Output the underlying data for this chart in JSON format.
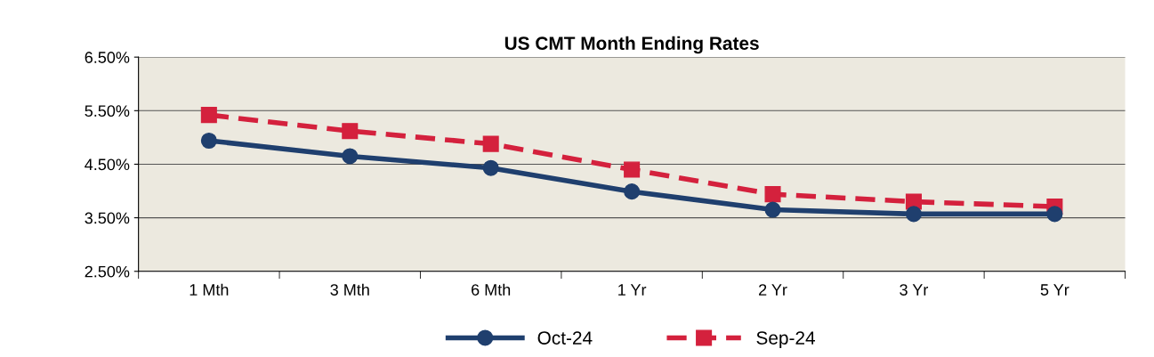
{
  "chart_data": {
    "type": "line",
    "title": "US CMT Month Ending Rates",
    "categories": [
      "1 Mth",
      "3 Mth",
      "6 Mth",
      "1 Yr",
      "2 Yr",
      "3 Yr",
      "5 Yr"
    ],
    "series": [
      {
        "name": "Oct-24",
        "color": "#1f3f6e",
        "values": [
          4.94,
          4.65,
          4.43,
          3.99,
          3.65,
          3.57,
          3.57
        ],
        "marker": "circle",
        "line_style": "solid"
      },
      {
        "name": "Sep-24",
        "color": "#d4213d",
        "values": [
          5.42,
          5.12,
          4.88,
          4.4,
          3.94,
          3.8,
          3.71
        ],
        "marker": "square",
        "line_style": "dashed"
      }
    ],
    "ylim": [
      2.5,
      6.5
    ],
    "yticks": [
      {
        "value": 2.5,
        "label": "2.50%"
      },
      {
        "value": 3.5,
        "label": "3.50%"
      },
      {
        "value": 4.5,
        "label": "4.50%"
      },
      {
        "value": 5.5,
        "label": "5.50%"
      },
      {
        "value": 6.5,
        "label": "6.50%"
      }
    ],
    "grid": "y",
    "legend": "bottom"
  }
}
